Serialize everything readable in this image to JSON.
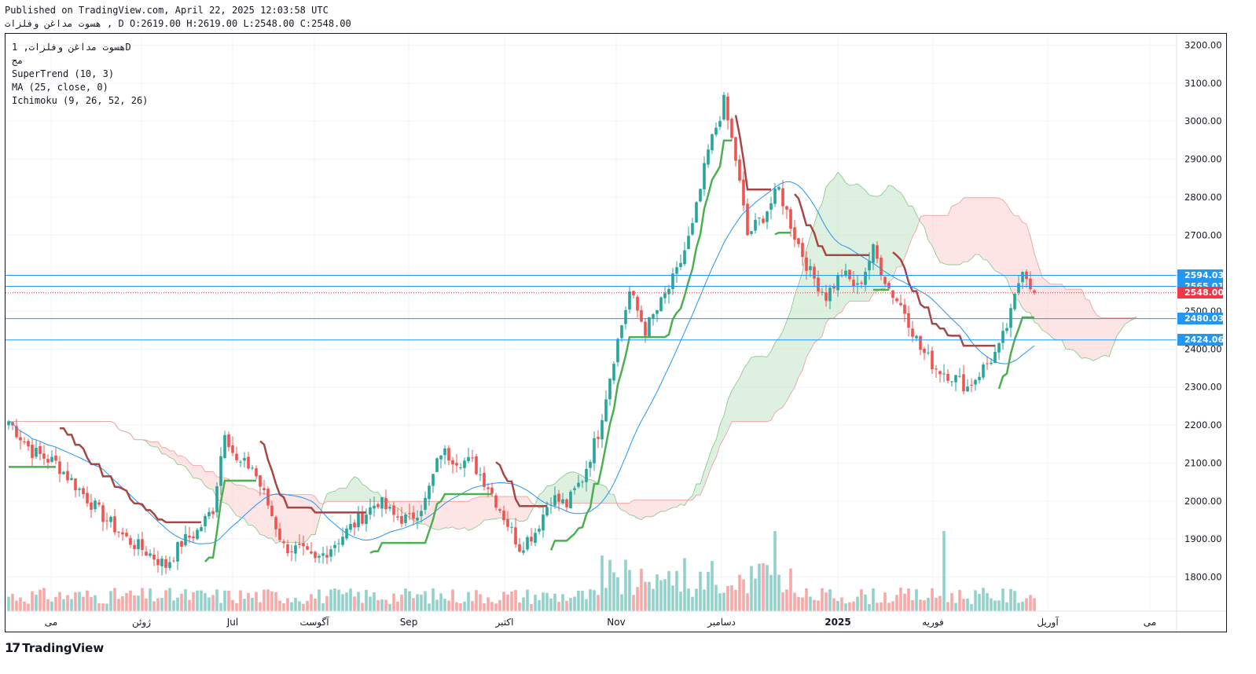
{
  "header": {
    "published": "Published on TradingView.com, April 22, 2025 12:03:58 UTC",
    "ohlc": "هسوت مداغن وفلزات , D O:2619.00 H:2619.00 L:2548.00 C:2548.00"
  },
  "legend": {
    "symbol": "هسوت مداغن وفلزات, 1D",
    "exchange": "مج",
    "supertrend": "SuperTrend (10, 3)",
    "ma": "MA (25, close, 0)",
    "ichimoku": "Ichimoku (9, 26, 52, 26)"
  },
  "footer": {
    "brand": "TradingView"
  },
  "colors": {
    "up": "#26a69a",
    "down": "#ef5350",
    "supertrend_up": "#4caf50",
    "supertrend_down": "#a84646",
    "ma": "#2196f3",
    "cloud_up": "#c8e6c9",
    "cloud_down": "#fcd4d4",
    "hline": "#2196f3",
    "last": "#f23645"
  },
  "chart_data": {
    "type": "candlestick",
    "timeframe": "1D",
    "y_axis": {
      "ticks": [
        1800,
        1900,
        2000,
        2100,
        2200,
        2300,
        2400,
        2500,
        2600,
        2700,
        2800,
        2900,
        3000,
        3100,
        3200
      ],
      "range": [
        1710,
        3230
      ]
    },
    "x_axis": {
      "labels": [
        "می",
        "ژوئن",
        "Jul",
        "آگوست",
        "Sep",
        "اکتبر",
        "Nov",
        "دسامبر",
        "2025",
        "فوریه",
        "آوریل",
        "می"
      ],
      "bold": [
        "2025"
      ]
    },
    "price_labels": [
      {
        "value": "2594.03",
        "kind": "blue"
      },
      {
        "value": "2565.01",
        "kind": "blue"
      },
      {
        "value": "2548.00",
        "kind": "red"
      },
      {
        "value": "2480.03",
        "kind": "blue"
      },
      {
        "value": "2424.06",
        "kind": "blue"
      }
    ],
    "horizontal_lines": [
      2594.03,
      2565.01,
      2480.03,
      2424.06
    ],
    "last_price": 2548.0,
    "close_keypoints": [
      [
        0,
        2210
      ],
      [
        6,
        2130
      ],
      [
        12,
        2100
      ],
      [
        18,
        2030
      ],
      [
        24,
        1960
      ],
      [
        30,
        1900
      ],
      [
        36,
        1860
      ],
      [
        40,
        1830
      ],
      [
        44,
        1890
      ],
      [
        48,
        1920
      ],
      [
        52,
        1980
      ],
      [
        55,
        2190
      ],
      [
        58,
        2100
      ],
      [
        62,
        2090
      ],
      [
        66,
        1990
      ],
      [
        70,
        1880
      ],
      [
        74,
        1870
      ],
      [
        78,
        1840
      ],
      [
        82,
        1880
      ],
      [
        86,
        1920
      ],
      [
        90,
        1960
      ],
      [
        94,
        2000
      ],
      [
        98,
        1960
      ],
      [
        102,
        1950
      ],
      [
        106,
        2000
      ],
      [
        110,
        2130
      ],
      [
        114,
        2110
      ],
      [
        118,
        2100
      ],
      [
        122,
        2040
      ],
      [
        126,
        1960
      ],
      [
        130,
        1880
      ],
      [
        134,
        1920
      ],
      [
        138,
        2010
      ],
      [
        142,
        1990
      ],
      [
        146,
        2060
      ],
      [
        150,
        2180
      ],
      [
        154,
        2380
      ],
      [
        158,
        2550
      ],
      [
        162,
        2450
      ],
      [
        166,
        2520
      ],
      [
        170,
        2600
      ],
      [
        174,
        2720
      ],
      [
        178,
        2920
      ],
      [
        182,
        3050
      ],
      [
        185,
        2900
      ],
      [
        188,
        2700
      ],
      [
        192,
        2750
      ],
      [
        196,
        2820
      ],
      [
        200,
        2700
      ],
      [
        204,
        2600
      ],
      [
        208,
        2540
      ],
      [
        212,
        2600
      ],
      [
        216,
        2560
      ],
      [
        220,
        2660
      ],
      [
        224,
        2560
      ],
      [
        228,
        2500
      ],
      [
        232,
        2400
      ],
      [
        236,
        2350
      ],
      [
        240,
        2330
      ],
      [
        244,
        2300
      ],
      [
        248,
        2350
      ],
      [
        252,
        2400
      ],
      [
        255,
        2490
      ],
      [
        258,
        2620
      ],
      [
        261,
        2548
      ]
    ],
    "bars": 262,
    "volume_scale_note": "relative"
  }
}
